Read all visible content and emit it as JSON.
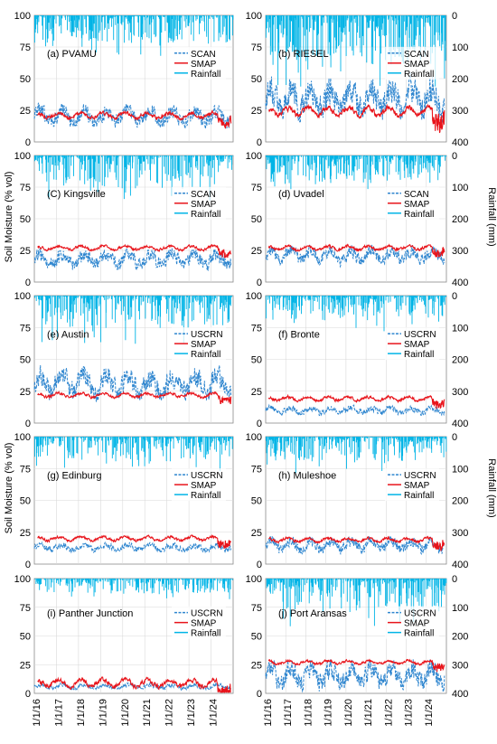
{
  "chart_data": {
    "type": "line",
    "axes": {
      "left_title": "Soil Moisture (% vol)",
      "right_title": "Rainfall (mm)",
      "left_ticks": [
        "0",
        "25",
        "50",
        "75",
        "100"
      ],
      "right_ticks": [
        "0",
        "100",
        "200",
        "300",
        "400"
      ],
      "date_ticks": [
        "1/1/16",
        "1/1/17",
        "1/1/18",
        "1/1/19",
        "1/1/20",
        "1/1/21",
        "1/1/22",
        "1/1/23",
        "1/1/24"
      ],
      "ylim": [
        0,
        100
      ],
      "rainfall_lim": [
        0,
        400
      ],
      "x_range": [
        "2016-01-01",
        "2024-12-31"
      ],
      "grid": true,
      "rainfall_inverted": true
    },
    "colors": {
      "station": "#2f86cf",
      "smap": "#e8141b",
      "rainfall": "#00b4e6"
    },
    "panels": [
      {
        "label": "(a) PVAMU",
        "legend": [
          "SCAN",
          "SMAP",
          "Rainfall"
        ],
        "station_mean": 20,
        "station_amp": 10,
        "smap_mean": 21,
        "smap_amp": 4,
        "rain_mean": 35,
        "station_end": 2024.9,
        "smap_start": 2016.0,
        "has_right_axis": false
      },
      {
        "label": "(b) RIESEL",
        "legend": [
          "SCAN",
          "SMAP",
          "Rainfall"
        ],
        "station_mean": 34,
        "station_amp": 18,
        "smap_mean": 24,
        "smap_amp": 6,
        "rain_mean": 60,
        "station_end": 2024.9,
        "smap_start": 2016.0,
        "has_right_axis": true
      },
      {
        "label": "(C) Kingsville",
        "legend": [
          "SCAN",
          "SMAP",
          "Rainfall"
        ],
        "station_mean": 18,
        "station_amp": 9,
        "smap_mean": 27,
        "smap_amp": 3,
        "rain_mean": 40,
        "station_end": 2024.9,
        "smap_start": 2016.0,
        "has_right_axis": false
      },
      {
        "label": "(d) Uvadel",
        "legend": [
          "SCAN",
          "SMAP",
          "Rainfall"
        ],
        "station_mean": 21,
        "station_amp": 8,
        "smap_mean": 27,
        "smap_amp": 3,
        "rain_mean": 35,
        "station_end": 2024.9,
        "smap_start": 2016.0,
        "has_right_axis": true
      },
      {
        "label": "(e) Austin",
        "legend": [
          "USCRN",
          "SMAP",
          "Rainfall"
        ],
        "station_mean": 31,
        "station_amp": 14,
        "smap_mean": 22,
        "smap_amp": 3,
        "rain_mean": 40,
        "station_end": 2024.9,
        "smap_start": 2016.0,
        "has_right_axis": false
      },
      {
        "label": "(f) Bronte",
        "legend": [
          "USCRN",
          "SMAP",
          "Rainfall"
        ],
        "station_mean": 10,
        "station_amp": 4,
        "smap_mean": 19,
        "smap_amp": 3,
        "rain_mean": 30,
        "station_end": 2024.9,
        "smap_start": 2016.0,
        "has_right_axis": true
      },
      {
        "label": "(g) Edinburg",
        "legend": [
          "USCRN",
          "SMAP",
          "Rainfall"
        ],
        "station_mean": 13,
        "station_amp": 4,
        "smap_mean": 20,
        "smap_amp": 3,
        "rain_mean": 30,
        "station_end": 2024.9,
        "smap_start": 2016.0,
        "has_right_axis": false
      },
      {
        "label": "(h) Muleshoe",
        "legend": [
          "USCRN",
          "SMAP",
          "Rainfall"
        ],
        "station_mean": 15,
        "station_amp": 7,
        "smap_mean": 19,
        "smap_amp": 3,
        "rain_mean": 30,
        "station_end": 2024.9,
        "smap_start": 2016.0,
        "has_right_axis": true
      },
      {
        "label": "(i) Panther Junction",
        "legend": [
          "USCRN",
          "SMAP",
          "Rainfall"
        ],
        "station_mean": 6,
        "station_amp": 3,
        "smap_mean": 9,
        "smap_amp": 6,
        "rain_mean": 20,
        "station_end": 2024.9,
        "smap_start": 2016.0,
        "has_right_axis": false
      },
      {
        "label": "(j) Port Aransas",
        "legend": [
          "USCRN",
          "SMAP",
          "Rainfall"
        ],
        "station_mean": 16,
        "station_amp": 14,
        "smap_mean": 27,
        "smap_amp": 3,
        "rain_mean": 45,
        "station_end": 2024.9,
        "smap_start": 2016.0,
        "has_right_axis": true
      }
    ]
  }
}
